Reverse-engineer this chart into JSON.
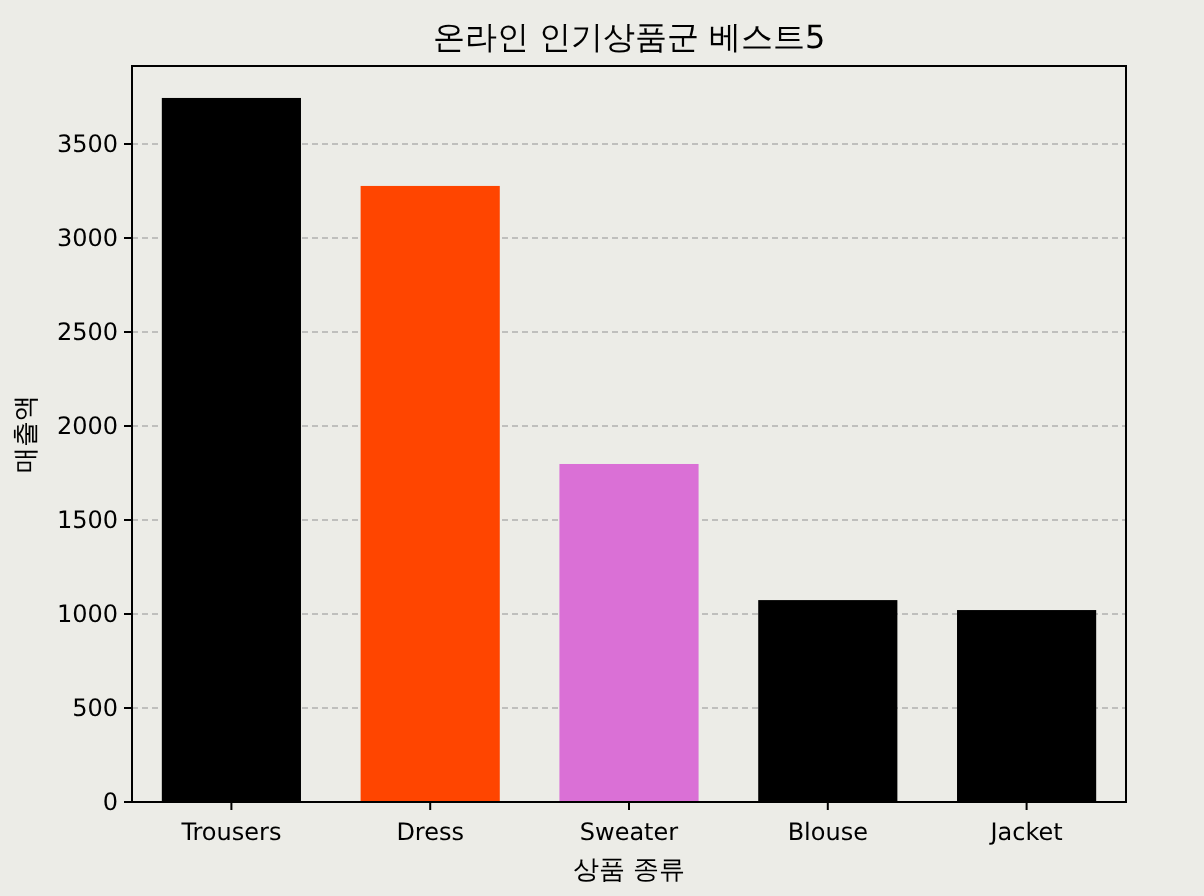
{
  "chart_data": {
    "type": "bar",
    "title": "온라인 인기상품군 베스트5",
    "xlabel": "상품 종류",
    "ylabel": "매출액",
    "categories": [
      "Trousers",
      "Dress",
      "Sweater",
      "Blouse",
      "Jacket"
    ],
    "values": [
      3745,
      3277,
      1798,
      1074,
      1021
    ],
    "colors": [
      "#000000",
      "#ff4500",
      "#da70d6",
      "#000000",
      "#000000"
    ],
    "ylim": [
      0,
      3915
    ],
    "yticks": [
      0,
      500,
      1000,
      1500,
      2000,
      2500,
      3000,
      3500
    ],
    "grid": "y"
  }
}
